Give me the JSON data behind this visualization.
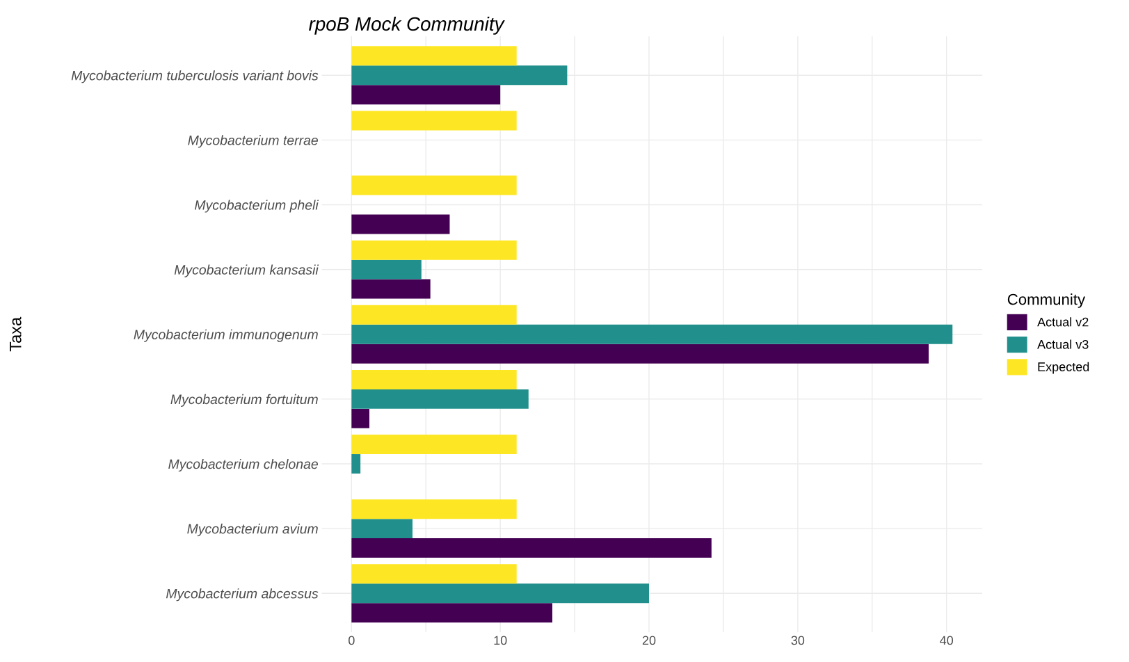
{
  "chart_data": {
    "type": "bar",
    "orientation": "horizontal",
    "title": "rpoB Mock Community",
    "ylabel": "Taxa",
    "legend_title": "Community",
    "legend": "right",
    "grid": true,
    "categories": [
      "Mycobacterium tuberculosis variant bovis",
      "Mycobacterium terrae",
      "Mycobacterium pheli",
      "Mycobacterium kansasii",
      "Mycobacterium immunogenum",
      "Mycobacterium fortuitum",
      "Mycobacterium chelonae",
      "Mycobacterium avium",
      "Mycobacterium abcessus"
    ],
    "series": [
      {
        "name": "Actual v2",
        "color": "#440154",
        "values": [
          10.0,
          null,
          6.6,
          5.3,
          38.8,
          1.2,
          null,
          24.2,
          13.5
        ]
      },
      {
        "name": "Actual v3",
        "color": "#21908c",
        "values": [
          14.5,
          null,
          null,
          4.7,
          40.4,
          11.9,
          0.6,
          4.1,
          20.0
        ]
      },
      {
        "name": "Expected",
        "color": "#fde725",
        "values": [
          11.1,
          11.1,
          11.1,
          11.1,
          11.1,
          11.1,
          11.1,
          11.1,
          11.1
        ]
      }
    ],
    "xlim": [
      -2.0,
      42.4
    ],
    "xticks": [
      0,
      {
        "value": 5,
        "label": null
      },
      10,
      {
        "value": 15,
        "label": null
      },
      20,
      {
        "value": 25,
        "label": null
      },
      30,
      {
        "value": 35,
        "label": null
      },
      40
    ]
  }
}
